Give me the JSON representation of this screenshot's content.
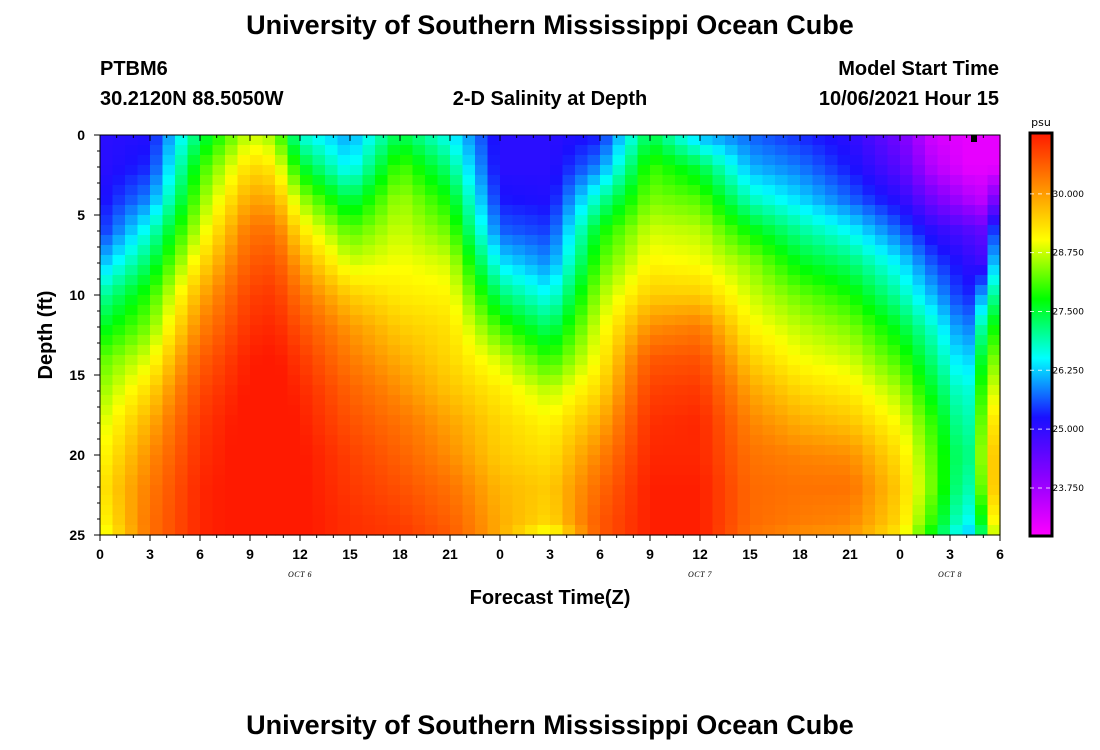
{
  "header": {
    "title": "University of Southern Mississippi Ocean Cube",
    "station": "PTBM6",
    "location": "30.2120N  88.5050W",
    "start_label": "Model Start Time",
    "start_value": "10/06/2021 Hour 15",
    "footer_title": "University of Southern Mississippi Ocean Cube"
  },
  "chart_data": {
    "type": "heatmap",
    "title": "2-D Salinity at Depth",
    "xlabel": "Forecast Time(Z)",
    "ylabel": "Depth (ft)",
    "x_ticks": [
      "0",
      "3",
      "6",
      "9",
      "12",
      "15",
      "18",
      "21",
      "0",
      "3",
      "6",
      "9",
      "12",
      "15",
      "18",
      "21",
      "0",
      "3",
      "6"
    ],
    "x_hours": [
      0,
      3,
      6,
      9,
      12,
      15,
      18,
      21,
      24,
      27,
      30,
      33,
      36,
      39,
      42,
      45,
      48,
      51,
      54
    ],
    "xlim": [
      0,
      54
    ],
    "date_labels": [
      {
        "text": "OCT 6",
        "hour": 12
      },
      {
        "text": "OCT 7",
        "hour": 36
      },
      {
        "text": "OCT 8",
        "hour": 51
      }
    ],
    "y_ticks": [
      "0",
      "5",
      "10",
      "15",
      "20",
      "25"
    ],
    "y_values": [
      0,
      5,
      10,
      15,
      20,
      25
    ],
    "ylim": [
      0,
      25
    ],
    "colorbar": {
      "unit": "psu",
      "range": [
        22.75,
        31.25
      ],
      "ticks": [
        "30.000",
        "28.750",
        "27.500",
        "26.250",
        "25.000",
        "23.750"
      ],
      "tick_values": [
        30.0,
        28.75,
        27.5,
        26.25,
        25.0,
        23.75
      ],
      "palette": [
        "#ff00ff",
        "#8a00ff",
        "#1a10ff",
        "#00ffff",
        "#00ff00",
        "#ffff00",
        "#ff8000",
        "#ff1a00"
      ]
    },
    "depth_profile_ft": [
      0,
      2,
      4,
      6,
      8,
      10,
      12,
      14,
      16,
      18,
      20,
      22,
      24,
      25
    ],
    "time_hours": [
      0,
      3,
      6,
      9,
      10.5,
      12,
      15,
      18,
      21,
      24,
      27,
      30,
      33,
      36,
      39,
      42,
      45,
      48,
      50,
      52,
      53,
      54
    ],
    "salinity_psu": [
      [
        25.0,
        25.1,
        27.2,
        28.6,
        28.3,
        26.6,
        25.9,
        27.3,
        26.4,
        25.0,
        25.0,
        25.2,
        27.3,
        26.0,
        25.6,
        25.3,
        25.0,
        24.2,
        23.2,
        23.0,
        23.0,
        23.0
      ],
      [
        25.0,
        25.3,
        27.8,
        29.2,
        29.0,
        27.5,
        26.3,
        28.0,
        27.0,
        25.0,
        25.0,
        25.8,
        27.9,
        27.3,
        26.0,
        25.7,
        25.2,
        24.5,
        23.5,
        23.0,
        23.0,
        23.0
      ],
      [
        25.1,
        25.8,
        28.2,
        29.7,
        29.6,
        28.4,
        27.2,
        28.4,
        27.6,
        25.2,
        25.1,
        26.8,
        28.2,
        28.0,
        26.7,
        26.2,
        25.6,
        25.0,
        24.2,
        23.6,
        23.4,
        24.5
      ],
      [
        25.3,
        26.6,
        28.6,
        30.2,
        30.2,
        29.1,
        28.0,
        28.6,
        28.1,
        25.6,
        25.4,
        27.6,
        28.6,
        28.5,
        27.6,
        26.9,
        26.4,
        25.6,
        25.0,
        24.6,
        24.4,
        26.0
      ],
      [
        26.0,
        27.2,
        29.1,
        30.5,
        30.6,
        29.7,
        28.6,
        28.8,
        28.6,
        26.3,
        25.8,
        28.0,
        28.9,
        28.8,
        28.3,
        27.5,
        27.1,
        26.3,
        25.5,
        25.0,
        24.8,
        26.8
      ],
      [
        26.8,
        27.8,
        29.6,
        30.8,
        30.9,
        30.2,
        29.3,
        29.0,
        28.9,
        27.1,
        26.4,
        28.4,
        29.3,
        29.3,
        28.6,
        28.1,
        27.7,
        26.8,
        26.0,
        25.2,
        26.0,
        27.4
      ],
      [
        27.4,
        28.2,
        30.0,
        31.0,
        31.1,
        30.6,
        29.8,
        29.3,
        29.1,
        27.9,
        27.1,
        28.7,
        29.9,
        30.1,
        28.9,
        28.5,
        28.2,
        27.4,
        26.6,
        25.6,
        27.0,
        28.0
      ],
      [
        28.0,
        28.7,
        30.4,
        31.2,
        31.3,
        30.9,
        30.1,
        29.6,
        29.2,
        28.6,
        27.8,
        28.9,
        30.5,
        30.6,
        29.3,
        28.8,
        28.6,
        27.9,
        27.0,
        26.0,
        27.6,
        28.5
      ],
      [
        28.3,
        29.2,
        30.7,
        31.3,
        31.4,
        31.1,
        30.4,
        29.9,
        29.4,
        29.0,
        28.5,
        29.2,
        30.8,
        30.9,
        29.7,
        29.2,
        29.0,
        28.4,
        27.4,
        26.4,
        28.0,
        29.0
      ],
      [
        28.6,
        29.6,
        30.9,
        31.4,
        31.5,
        31.2,
        30.6,
        30.2,
        29.7,
        29.2,
        28.9,
        29.6,
        31.0,
        31.1,
        30.0,
        29.6,
        29.4,
        28.8,
        27.8,
        26.6,
        28.3,
        29.5
      ],
      [
        28.8,
        29.9,
        31.0,
        31.4,
        31.5,
        31.3,
        30.8,
        30.4,
        29.9,
        29.3,
        29.1,
        30.0,
        31.1,
        31.1,
        30.2,
        30.0,
        29.9,
        29.1,
        28.0,
        26.8,
        28.5,
        29.8
      ],
      [
        29.0,
        30.1,
        31.1,
        31.4,
        31.5,
        31.3,
        30.9,
        30.6,
        30.2,
        29.5,
        29.3,
        30.3,
        31.2,
        31.2,
        30.3,
        30.2,
        30.2,
        29.3,
        28.1,
        26.6,
        28.3,
        29.9
      ],
      [
        28.8,
        30.2,
        31.1,
        31.4,
        31.5,
        31.3,
        31.0,
        30.8,
        30.4,
        29.6,
        29.2,
        30.5,
        31.2,
        31.2,
        30.3,
        30.1,
        30.0,
        29.2,
        27.8,
        26.3,
        27.7,
        29.6
      ],
      [
        28.6,
        30.2,
        31.1,
        31.4,
        31.5,
        31.3,
        31.0,
        30.9,
        30.5,
        29.6,
        28.6,
        30.5,
        31.2,
        31.2,
        30.2,
        29.9,
        29.8,
        29.0,
        27.5,
        26.0,
        27.2,
        29.3
      ]
    ]
  }
}
